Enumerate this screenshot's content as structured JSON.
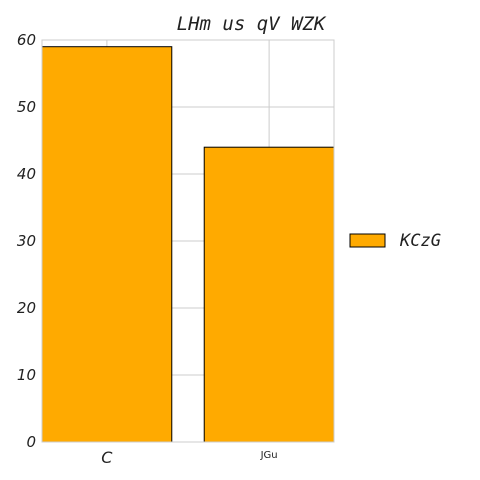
{
  "chart_data": {
    "type": "bar",
    "title": "LHm us  qV WZK",
    "categories": [
      "C",
      "JGu"
    ],
    "series": [
      {
        "name": "KCzG",
        "values": [
          59,
          44
        ],
        "color": "#ffaa00"
      }
    ],
    "ylim": [
      0,
      60
    ],
    "yticks": [
      0,
      10,
      20,
      30,
      40,
      50,
      60
    ],
    "grid": true,
    "legend_position": "right"
  }
}
